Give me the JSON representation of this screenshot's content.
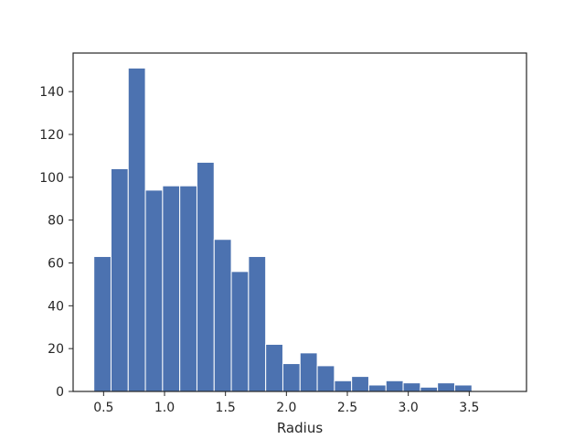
{
  "chart_data": {
    "type": "bar",
    "subtype": "histogram",
    "title": "",
    "xlabel": "Radius",
    "ylabel": "",
    "xlim": [
      0.25,
      3.97
    ],
    "ylim": [
      0,
      158
    ],
    "bar_color": "#4c72b0",
    "grid": false,
    "x_ticks": [
      0.5,
      1.0,
      1.5,
      2.0,
      2.5,
      3.0,
      3.5
    ],
    "x_tick_labels": [
      "0.5",
      "1.0",
      "1.5",
      "2.0",
      "2.5",
      "3.0",
      "3.5"
    ],
    "y_ticks": [
      0,
      20,
      40,
      60,
      80,
      100,
      120,
      140
    ],
    "y_tick_labels": [
      "0",
      "20",
      "40",
      "60",
      "80",
      "100",
      "120",
      "140"
    ],
    "bin_edges": [
      0.42,
      0.561,
      0.702,
      0.843,
      0.984,
      1.125,
      1.266,
      1.407,
      1.548,
      1.689,
      1.83,
      1.971,
      2.112,
      2.253,
      2.394,
      2.535,
      2.676,
      2.817,
      2.958,
      3.099,
      3.24,
      3.381,
      3.522,
      3.663,
      3.804
    ],
    "values": [
      63,
      104,
      151,
      94,
      96,
      96,
      107,
      71,
      56,
      63,
      22,
      13,
      18,
      12,
      5,
      7,
      3,
      5,
      4,
      2,
      4,
      3,
      0,
      0
    ]
  }
}
